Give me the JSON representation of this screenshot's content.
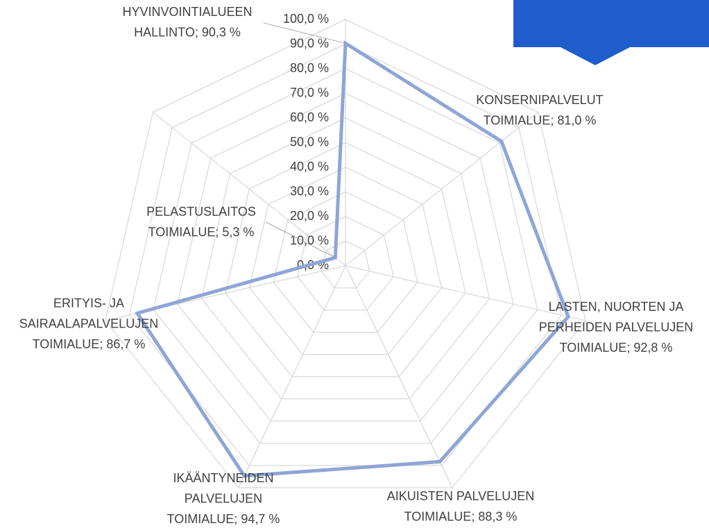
{
  "chart_data": {
    "type": "radar",
    "values": [
      90.3,
      81.0,
      92.8,
      88.3,
      94.7,
      86.7,
      5.3
    ],
    "value_labels": [
      [
        "HYVINVOINTIALUEEN",
        "HALLINTO; 90,3 %"
      ],
      [
        "KONSERNIPALVELUT",
        "TOIMIALUE; 81,0 %"
      ],
      [
        "LASTEN, NUORTEN JA",
        "PERHEIDEN PALVELUJEN",
        "TOIMIALUE; 92,8 %"
      ],
      [
        "AIKUISTEN PALVELUJEN",
        "TOIMIALUE; 88,3 %"
      ],
      [
        "IKÄÄNTYNEIDEN",
        "PALVELUJEN",
        "TOIMIALUE; 94,7 %"
      ],
      [
        "ERITYIS- JA",
        "SAIRAALAPALVELUJEN",
        "TOIMIALUE; 86,7 %"
      ],
      [
        "PELASTUSLAITOS",
        "TOIMIALUE; 5,3 %"
      ]
    ],
    "color": "#8ea5d6",
    "ylim": [
      0,
      100
    ],
    "yticks": [
      {
        "value": 0,
        "label": "0,0 %"
      },
      {
        "value": 10,
        "label": "10,0 %"
      },
      {
        "value": 20,
        "label": "20,0 %"
      },
      {
        "value": 30,
        "label": "30,0 %"
      },
      {
        "value": 40,
        "label": "40,0 %"
      },
      {
        "value": 50,
        "label": "50,0 %"
      },
      {
        "value": 60,
        "label": "60,0 %"
      },
      {
        "value": 70,
        "label": "70,0 %"
      },
      {
        "value": 80,
        "label": "80,0 %"
      },
      {
        "value": 90,
        "label": "90,0 %"
      },
      {
        "value": 100,
        "label": "100,0 %"
      }
    ],
    "grid": true
  }
}
